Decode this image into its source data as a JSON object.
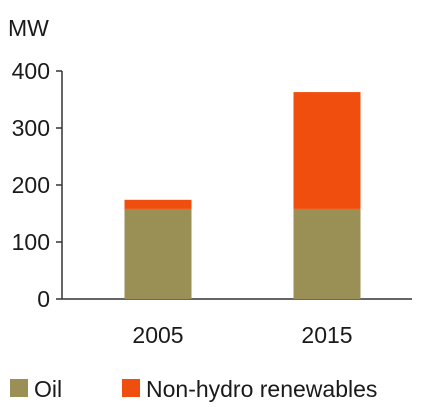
{
  "chart_data": {
    "type": "bar",
    "stacked": true,
    "unit_label": "MW",
    "categories": [
      "2005",
      "2015"
    ],
    "series": [
      {
        "name": "Oil",
        "values": [
          158,
          158
        ],
        "color": "#9a8f55"
      },
      {
        "name": "Non-hydro renewables",
        "values": [
          16,
          205
        ],
        "color": "#f04e0f"
      }
    ],
    "ylim": [
      0,
      400
    ],
    "yticks": [
      0,
      100,
      200,
      300,
      400
    ],
    "grid": false,
    "legend_position": "bottom"
  }
}
